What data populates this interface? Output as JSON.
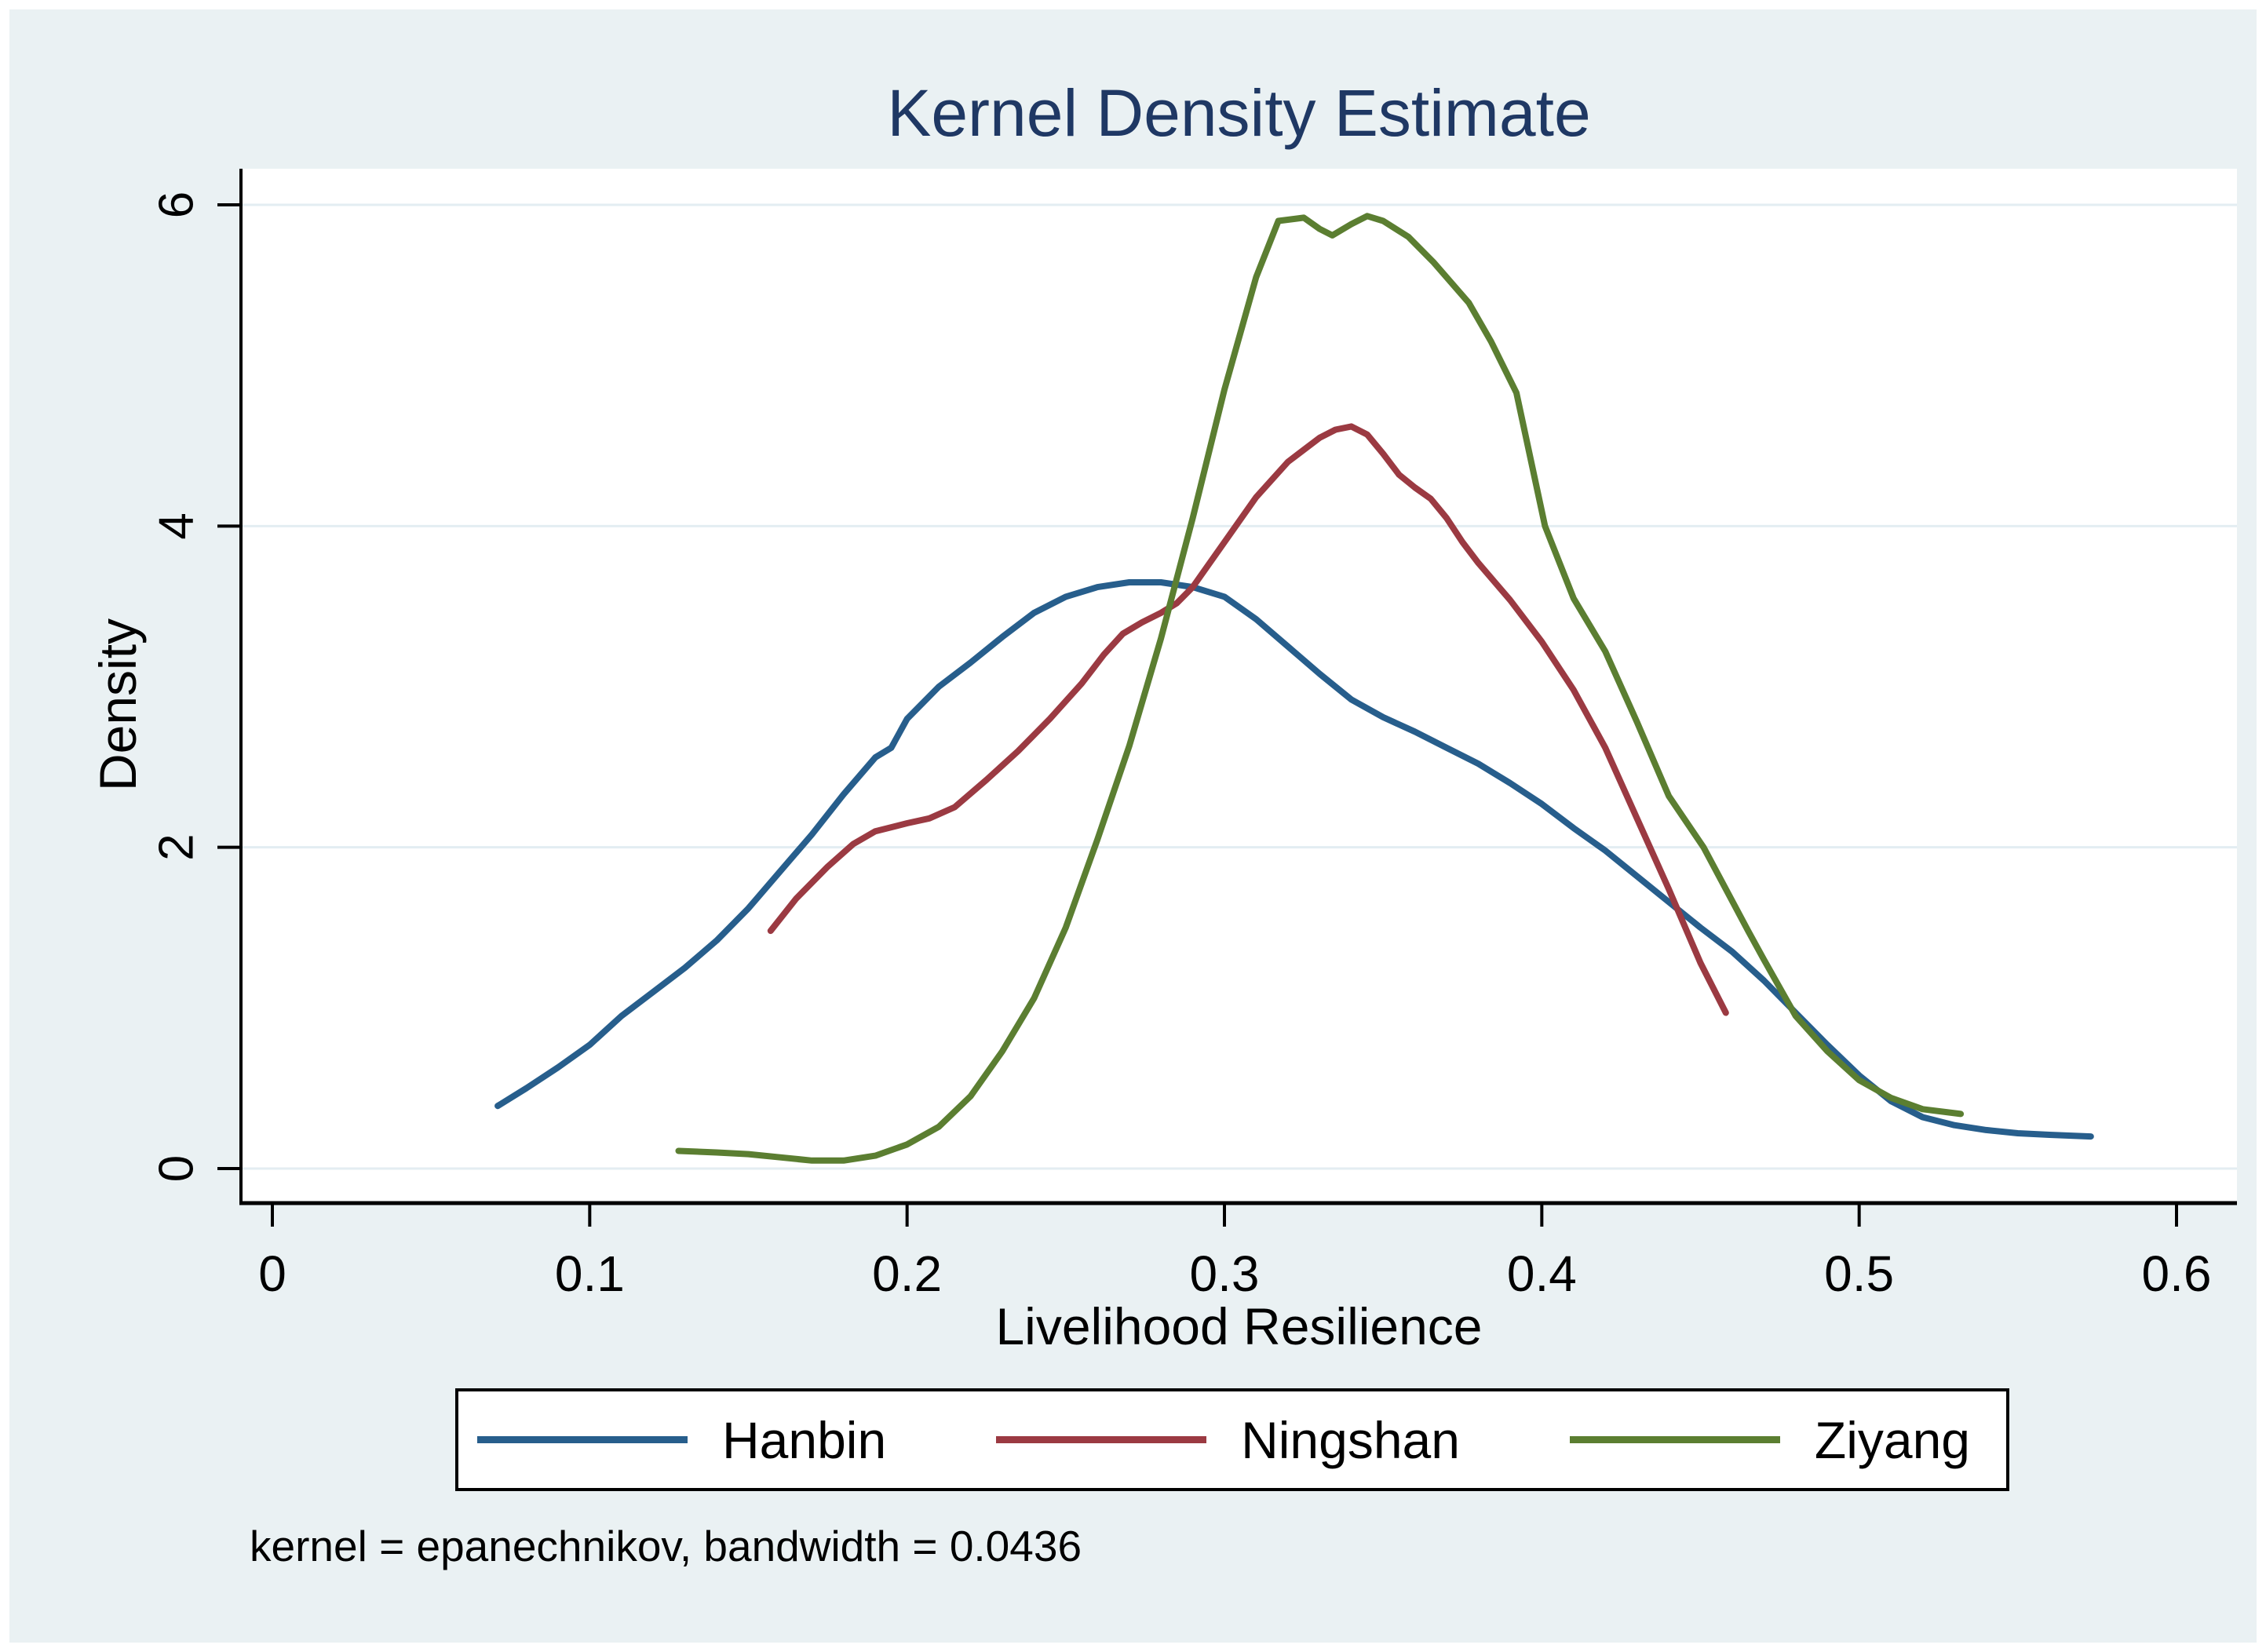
{
  "figure": {
    "title": "Kernel Density Estimate",
    "x_axis_label": "Livelihood Resilience",
    "y_axis_label": "Density",
    "note": "kernel = epanechnikov, bandwidth = 0.0436"
  },
  "legend": {
    "items": [
      {
        "label": "Hanbin",
        "color": "#275e8c"
      },
      {
        "label": "Ningshan",
        "color": "#9b3a42"
      },
      {
        "label": "Ziyang",
        "color": "#5b7e31"
      }
    ]
  },
  "colors": {
    "background": "#eaf1f3",
    "plot_background": "#ffffff",
    "gridline": "#e3edf2",
    "axis": "#000000",
    "title_text": "#1f3864",
    "label_text": "#000000"
  },
  "chart_data": {
    "type": "line",
    "title": "Kernel Density Estimate",
    "xlabel": "Livelihood Resilience",
    "ylabel": "Density",
    "xlim": [
      0,
      0.6
    ],
    "ylim": [
      0,
      6
    ],
    "grid": "horizontal",
    "legend_position": "bottom",
    "xticks": {
      "values": [
        0,
        0.1,
        0.2,
        0.3,
        0.4,
        0.5,
        0.6
      ],
      "labels": [
        "0",
        "0.1",
        "0.2",
        "0.3",
        "0.4",
        "0.5",
        "0.6"
      ]
    },
    "yticks": {
      "values": [
        0,
        2,
        4,
        6
      ],
      "labels": [
        "0",
        "2",
        "4",
        "6"
      ]
    },
    "note": "kernel = epanechnikov, bandwidth = 0.0436",
    "kernel": "epanechnikov",
    "bandwidth": 0.0436,
    "series": [
      {
        "name": "Hanbin",
        "color": "#275e8c",
        "x": [
          0.071,
          0.08,
          0.09,
          0.1,
          0.11,
          0.12,
          0.13,
          0.14,
          0.15,
          0.16,
          0.17,
          0.18,
          0.19,
          0.195,
          0.2,
          0.21,
          0.22,
          0.23,
          0.24,
          0.25,
          0.26,
          0.27,
          0.28,
          0.29,
          0.3,
          0.31,
          0.32,
          0.33,
          0.34,
          0.35,
          0.36,
          0.37,
          0.38,
          0.39,
          0.4,
          0.41,
          0.42,
          0.43,
          0.44,
          0.45,
          0.46,
          0.47,
          0.48,
          0.49,
          0.5,
          0.51,
          0.52,
          0.53,
          0.54,
          0.55,
          0.56,
          0.573
        ],
        "y": [
          0.39,
          0.5,
          0.63,
          0.77,
          0.95,
          1.1,
          1.25,
          1.42,
          1.62,
          1.85,
          2.08,
          2.33,
          2.56,
          2.62,
          2.8,
          3.0,
          3.15,
          3.31,
          3.46,
          3.56,
          3.62,
          3.65,
          3.65,
          3.62,
          3.56,
          3.42,
          3.25,
          3.08,
          2.92,
          2.81,
          2.72,
          2.62,
          2.52,
          2.4,
          2.27,
          2.12,
          1.98,
          1.82,
          1.66,
          1.5,
          1.35,
          1.17,
          0.97,
          0.77,
          0.58,
          0.42,
          0.32,
          0.27,
          0.24,
          0.22,
          0.21,
          0.2
        ]
      },
      {
        "name": "Ningshan",
        "color": "#9b3a42",
        "x": [
          0.157,
          0.165,
          0.175,
          0.183,
          0.19,
          0.2,
          0.207,
          0.215,
          0.225,
          0.235,
          0.245,
          0.255,
          0.262,
          0.268,
          0.274,
          0.28,
          0.285,
          0.29,
          0.3,
          0.31,
          0.32,
          0.33,
          0.335,
          0.34,
          0.345,
          0.35,
          0.355,
          0.36,
          0.365,
          0.37,
          0.375,
          0.38,
          0.39,
          0.4,
          0.41,
          0.42,
          0.43,
          0.44,
          0.45,
          0.458
        ],
        "y": [
          1.48,
          1.68,
          1.88,
          2.02,
          2.1,
          2.15,
          2.18,
          2.25,
          2.42,
          2.6,
          2.8,
          3.02,
          3.2,
          3.33,
          3.4,
          3.46,
          3.52,
          3.62,
          3.9,
          4.18,
          4.4,
          4.55,
          4.6,
          4.62,
          4.57,
          4.45,
          4.32,
          4.24,
          4.17,
          4.05,
          3.9,
          3.77,
          3.54,
          3.28,
          2.98,
          2.62,
          2.18,
          1.74,
          1.28,
          0.97
        ]
      },
      {
        "name": "Ziyang",
        "color": "#5b7e31",
        "x": [
          0.128,
          0.14,
          0.15,
          0.16,
          0.17,
          0.18,
          0.19,
          0.2,
          0.21,
          0.22,
          0.23,
          0.24,
          0.25,
          0.26,
          0.27,
          0.28,
          0.29,
          0.3,
          0.31,
          0.317,
          0.325,
          0.33,
          0.334,
          0.34,
          0.345,
          0.35,
          0.358,
          0.366,
          0.377,
          0.384,
          0.392,
          0.401,
          0.41,
          0.42,
          0.43,
          0.44,
          0.451,
          0.465,
          0.47,
          0.48,
          0.49,
          0.5,
          0.51,
          0.52,
          0.532
        ],
        "y": [
          0.11,
          0.1,
          0.09,
          0.07,
          0.05,
          0.05,
          0.08,
          0.15,
          0.26,
          0.45,
          0.73,
          1.06,
          1.5,
          2.05,
          2.63,
          3.3,
          4.05,
          4.85,
          5.55,
          5.9,
          5.92,
          5.85,
          5.81,
          5.88,
          5.93,
          5.9,
          5.8,
          5.64,
          5.39,
          5.15,
          4.83,
          4.0,
          3.55,
          3.22,
          2.78,
          2.32,
          2.0,
          1.48,
          1.3,
          0.95,
          0.73,
          0.55,
          0.44,
          0.37,
          0.34
        ]
      }
    ]
  }
}
